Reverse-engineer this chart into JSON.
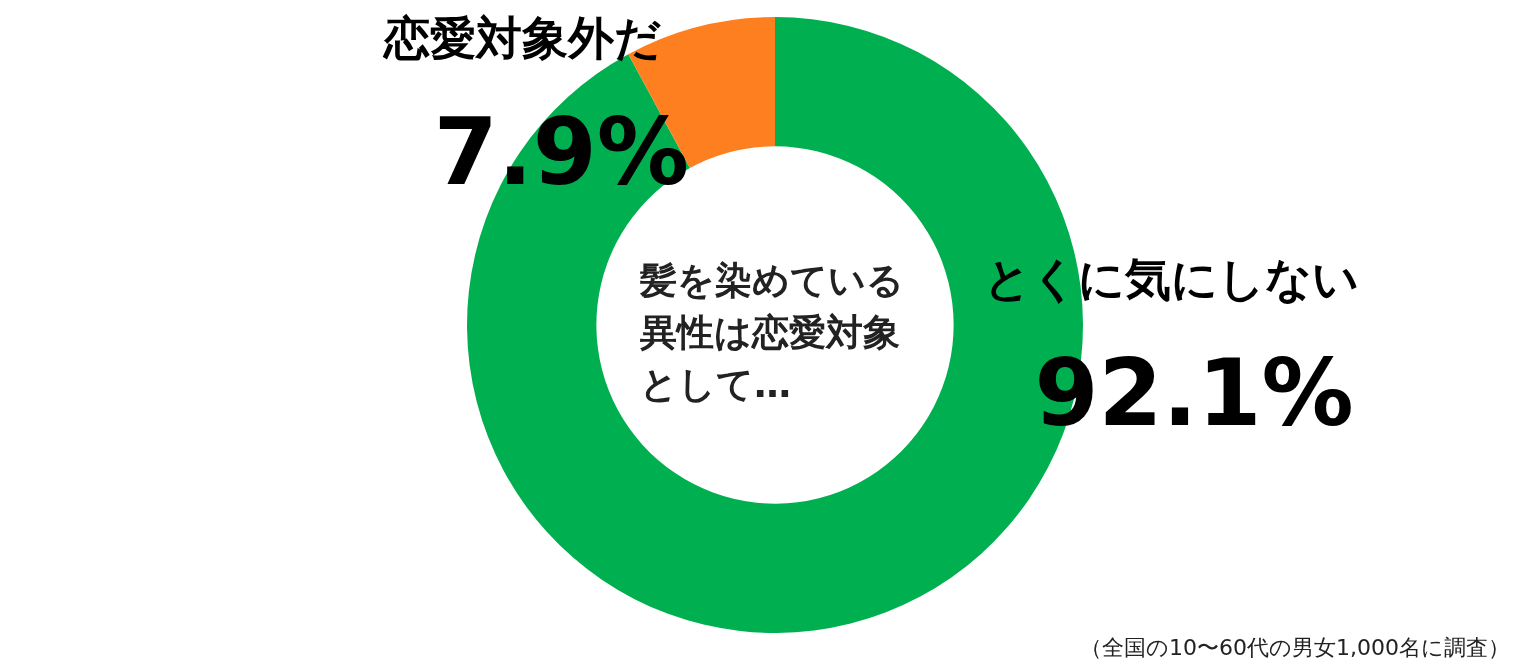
{
  "chart_data": {
    "type": "donut",
    "title": "髪を染めている異性は恋愛対象として…",
    "categories": [
      "とくに気にしない",
      "恋愛対象外だ"
    ],
    "values": [
      92.1,
      7.9
    ],
    "colors": [
      "#00b050",
      "#fe7f1f"
    ],
    "value_labels": [
      "92.1%",
      "7.9%"
    ],
    "annotations": [
      "（全国の10〜60代の男女1,000名に調査）"
    ]
  }
}
